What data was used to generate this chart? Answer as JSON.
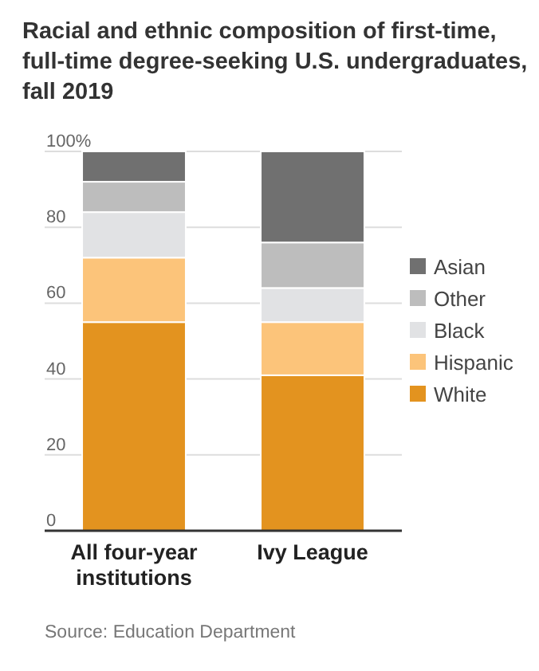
{
  "chart_data": {
    "type": "bar",
    "stacked": true,
    "title": "Racial and ethnic composition of first-time, full-time degree-seeking U.S. undergraduates, fall 2019",
    "categories": [
      "All four-year institutions",
      "Ivy League"
    ],
    "series": [
      {
        "name": "White",
        "color": "#e3931f",
        "values": [
          55,
          41
        ]
      },
      {
        "name": "Hispanic",
        "color": "#fcc47a",
        "values": [
          17,
          14
        ]
      },
      {
        "name": "Black",
        "color": "#e1e2e4",
        "values": [
          12,
          9
        ]
      },
      {
        "name": "Other",
        "color": "#bdbdbd",
        "values": [
          8,
          12
        ]
      },
      {
        "name": "Asian",
        "color": "#707070",
        "values": [
          8,
          24
        ]
      }
    ],
    "ylim": [
      0,
      100
    ],
    "yticks": [
      0,
      20,
      40,
      60,
      80,
      {
        "value": 100,
        "label": "100%"
      }
    ],
    "grid": "y",
    "legend": "right",
    "annotations": [
      "Source: Education Department"
    ]
  }
}
